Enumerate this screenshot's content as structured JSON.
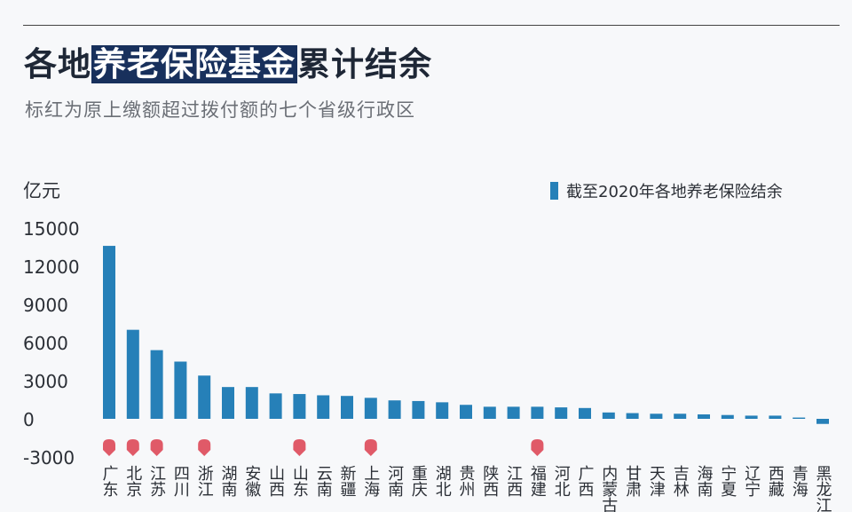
{
  "title_parts": [
    "各地",
    "养老保险基金",
    "累计结余"
  ],
  "subtitle": "标红为原上缴额超过拨付额的七个省级行政区",
  "unit_label": "亿元",
  "legend_label": "截至2020年各地养老保险结余",
  "colors": {
    "bar": "#2680b8",
    "marker": "#e05a68",
    "title_highlight_bg": "#18305c",
    "background": "#f7f8fa"
  },
  "chart_data": {
    "type": "bar",
    "ylim": [
      -3000,
      15000
    ],
    "yticks": [
      15000,
      12000,
      9000,
      6000,
      3000,
      0,
      -3000
    ],
    "categories": [
      "广东",
      "北京",
      "江苏",
      "四川",
      "浙江",
      "湖南",
      "安徽",
      "山西",
      "山东",
      "云南",
      "新疆",
      "上海",
      "河南",
      "重庆",
      "湖北",
      "贵州",
      "陕西",
      "江西",
      "福建",
      "河北",
      "广西",
      "内蒙古",
      "甘肃",
      "天津",
      "吉林",
      "海南",
      "宁夏",
      "辽宁",
      "西藏",
      "青海",
      "黑龙江"
    ],
    "series": [
      {
        "values": [
          13600,
          7000,
          5400,
          4500,
          3400,
          2500,
          2500,
          2000,
          1950,
          1850,
          1800,
          1650,
          1450,
          1400,
          1300,
          1100,
          950,
          950,
          950,
          900,
          850,
          500,
          450,
          400,
          400,
          350,
          300,
          250,
          250,
          100,
          -400
        ]
      }
    ],
    "marked_categories": [
      "广东",
      "北京",
      "江苏",
      "浙江",
      "山东",
      "上海",
      "福建"
    ]
  }
}
